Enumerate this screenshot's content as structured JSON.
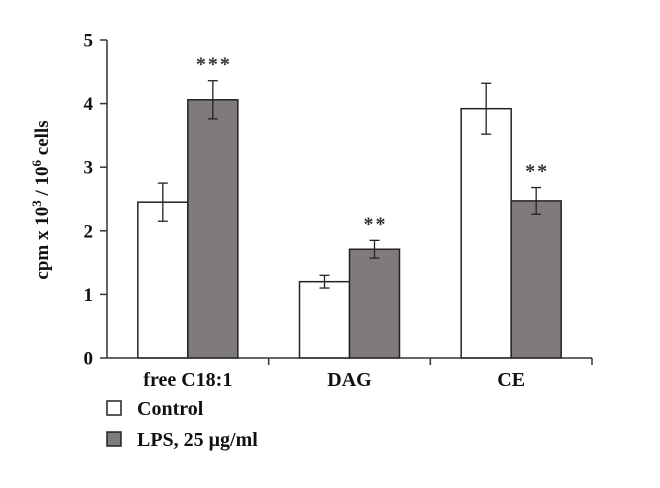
{
  "chart_data": {
    "type": "bar",
    "categories": [
      "free C18:1",
      "DAG",
      "CE"
    ],
    "series": [
      {
        "name": "Control",
        "values": [
          2.45,
          1.2,
          3.92
        ],
        "errors": [
          0.3,
          0.1,
          0.4
        ],
        "color": "#ffffff",
        "significance": [
          "",
          "",
          ""
        ]
      },
      {
        "name": "LPS, 25 μg/ml",
        "values": [
          4.06,
          1.71,
          2.47
        ],
        "errors": [
          0.3,
          0.14,
          0.21
        ],
        "color": "#7f7b7a",
        "significance": [
          "***",
          "**",
          "**"
        ]
      }
    ],
    "ylabel": {
      "main": "cpm x 10",
      "exp1": "3",
      "mid": " / 10",
      "exp2": "6",
      "end": " cells"
    },
    "ylim": [
      0,
      5
    ],
    "yticks": [
      0,
      1,
      2,
      3,
      4,
      5
    ]
  }
}
